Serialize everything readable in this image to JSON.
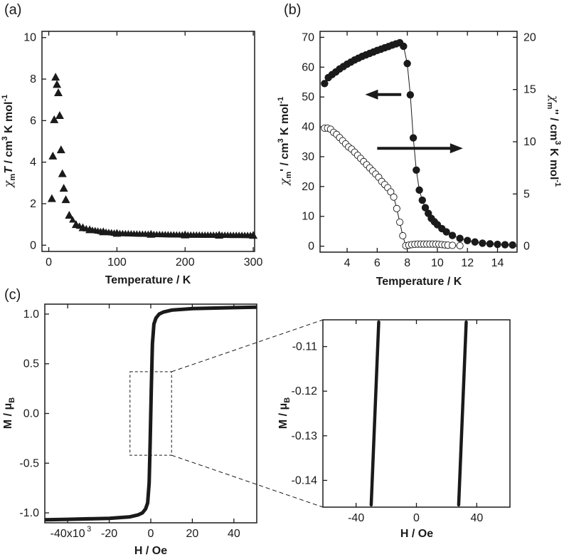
{
  "panels": {
    "a": "(a)",
    "b": "(b)",
    "c": "(c)"
  },
  "colors": {
    "ink": "#1a1a1a",
    "background": "#ffffff"
  },
  "chart_data": [
    {
      "id": "a",
      "type": "scatter",
      "marker": "filled-triangle",
      "xlabel": "Temperature / K",
      "ylabel_parts": [
        "χ",
        "m",
        "T",
        " / cm",
        "3",
        " K mol",
        "-1"
      ],
      "xlim": [
        -10,
        302
      ],
      "ylim": [
        -0.3,
        10.3
      ],
      "xticks": [
        0,
        100,
        200,
        300
      ],
      "yticks": [
        0,
        2,
        4,
        6,
        8,
        10
      ],
      "x": [
        4.5,
        6,
        8,
        10,
        12,
        14,
        16,
        18,
        20,
        22,
        25,
        30,
        40,
        50,
        60,
        80,
        100,
        150,
        200,
        250,
        300
      ],
      "y": [
        2.25,
        4.3,
        6.05,
        8.1,
        7.75,
        7.35,
        6.25,
        4.6,
        3.45,
        2.75,
        2.2,
        1.45,
        1.0,
        0.85,
        0.75,
        0.65,
        0.58,
        0.53,
        0.5,
        0.49,
        0.48
      ]
    },
    {
      "id": "b",
      "type": "line",
      "xlabel": "Temperature / K",
      "ylabel_left_parts": [
        "χ",
        "m",
        "'",
        " / cm",
        "3",
        " K mol",
        "-1"
      ],
      "ylabel_right_parts": [
        "χ",
        "m",
        "''",
        " / cm",
        "3",
        " K mol",
        "-1"
      ],
      "xlim": [
        2.2,
        15.3
      ],
      "ylim_left": [
        -2,
        72
      ],
      "ylim_right": [
        -0.571,
        20.571
      ],
      "xticks": [
        4,
        6,
        8,
        10,
        12,
        14
      ],
      "yticks_left": [
        0,
        10,
        20,
        30,
        40,
        50,
        60,
        70
      ],
      "yticks_right": [
        0,
        5,
        10,
        15,
        20
      ],
      "series": [
        {
          "axis": "left",
          "marker": "filled-circle",
          "x": [
            2.5,
            2.75,
            3.0,
            3.25,
            3.5,
            3.75,
            4.0,
            4.25,
            4.5,
            4.75,
            5.0,
            5.25,
            5.5,
            5.75,
            6.0,
            6.25,
            6.5,
            6.75,
            7.0,
            7.25,
            7.5,
            7.75,
            8.0,
            8.2,
            8.4,
            8.6,
            8.8,
            9.0,
            9.2,
            9.4,
            9.6,
            9.8,
            10.0,
            10.3,
            10.6,
            11.0,
            11.5,
            12.0,
            12.5,
            13.0,
            13.5,
            14.0,
            14.5,
            15.0
          ],
          "y": [
            54.5,
            56.5,
            57.5,
            58.4,
            59.4,
            60.2,
            61.0,
            61.7,
            62.4,
            63.0,
            63.6,
            64.1,
            64.6,
            65.1,
            65.6,
            66.0,
            66.5,
            66.9,
            67.4,
            67.8,
            68.2,
            67.0,
            61.2,
            50.7,
            36.3,
            25.5,
            18.8,
            15.4,
            12.9,
            11.0,
            9.3,
            8.2,
            7.2,
            5.9,
            4.8,
            3.6,
            2.6,
            1.9,
            1.4,
            1.0,
            0.8,
            0.6,
            0.5,
            0.4
          ]
        },
        {
          "axis": "right",
          "marker": "open-circle",
          "x": [
            2.5,
            2.7,
            2.9,
            3.1,
            3.3,
            3.5,
            3.7,
            3.9,
            4.1,
            4.3,
            4.5,
            4.7,
            4.9,
            5.1,
            5.3,
            5.5,
            5.7,
            5.9,
            6.1,
            6.3,
            6.5,
            6.7,
            6.9,
            7.1,
            7.3,
            7.5,
            7.7,
            7.9,
            8.1,
            8.3,
            8.5,
            8.7,
            8.9,
            9.1,
            9.3,
            9.5,
            9.7,
            9.9,
            10.1,
            10.3,
            10.5,
            10.7,
            11.0,
            11.5
          ],
          "y": [
            11.3,
            11.3,
            11.2,
            10.9,
            10.7,
            10.4,
            10.1,
            9.8,
            9.5,
            9.3,
            9.0,
            8.7,
            8.4,
            8.1,
            7.8,
            7.5,
            7.2,
            6.9,
            6.6,
            6.2,
            5.9,
            5.6,
            5.2,
            4.7,
            3.6,
            2.3,
            1.0,
            0.05,
            0.1,
            0.15,
            0.18,
            0.2,
            0.2,
            0.2,
            0.2,
            0.2,
            0.2,
            0.2,
            0.18,
            0.15,
            0.12,
            0.1,
            0.08,
            0.05
          ]
        }
      ],
      "arrows": [
        {
          "direction": "left",
          "axis": "left",
          "y": 50.8,
          "x_from": 7.6,
          "x_to": 5.2
        },
        {
          "direction": "right",
          "axis": "left",
          "y": 32.8,
          "x_from": 6.0,
          "x_to": 11.7
        }
      ]
    },
    {
      "id": "c-main",
      "type": "line",
      "xlabel": "H / Oe",
      "ylabel_parts": [
        "M / μ",
        "B"
      ],
      "xlim": [
        -51000,
        51000
      ],
      "ylim": [
        -1.1,
        1.1
      ],
      "xticks": [
        -40000,
        -20000,
        0,
        20000,
        40000
      ],
      "xticklabels": [
        "-40x10",
        "-20",
        "0",
        "20",
        "40"
      ],
      "x_exponent": "3",
      "yticks": [
        -1.0,
        -0.5,
        0.0,
        0.5,
        1.0
      ],
      "yticklabels": [
        "-1.0",
        "-0.5",
        "0.0",
        "0.5",
        "1.0"
      ],
      "x": [
        -51000,
        -40000,
        -20000,
        -10000,
        -6000,
        -4000,
        -2500,
        -1500,
        -800,
        -300,
        0,
        300,
        800,
        1500,
        2500,
        4000,
        6000,
        10000,
        20000,
        40000,
        51000
      ],
      "y": [
        -1.07,
        -1.065,
        -1.055,
        -1.04,
        -1.02,
        -1.0,
        -0.96,
        -0.9,
        -0.7,
        -0.3,
        0.0,
        0.3,
        0.7,
        0.9,
        0.96,
        1.0,
        1.02,
        1.04,
        1.055,
        1.065,
        1.07
      ],
      "zoom_box": {
        "x": [
          -10000,
          10000
        ],
        "y": [
          -0.42,
          0.42
        ]
      }
    },
    {
      "id": "c-inset",
      "type": "line",
      "xlabel": "H / Oe",
      "ylabel_parts": [
        "M / μ",
        "B"
      ],
      "xlim": [
        -62,
        62
      ],
      "ylim": [
        -0.146,
        -0.104
      ],
      "xticks": [
        -40,
        0,
        40
      ],
      "yticks": [
        -0.11,
        -0.12,
        -0.13,
        -0.14
      ],
      "yticklabels": [
        "-0.11",
        "-0.12",
        "-0.13",
        "-0.14"
      ],
      "series": [
        {
          "x": [
            -30,
            -25
          ],
          "y": [
            -0.1455,
            -0.1045
          ]
        },
        {
          "x": [
            28,
            33
          ],
          "y": [
            -0.1455,
            -0.1045
          ]
        }
      ]
    }
  ]
}
